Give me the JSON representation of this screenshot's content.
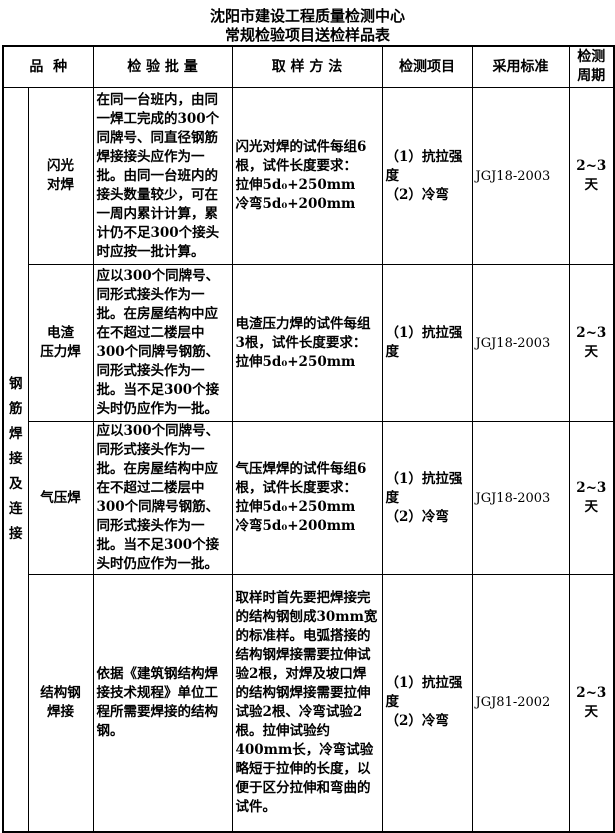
{
  "title_line1": "沈阳市建设工程质量检测中心",
  "title_line2": "常规检验项目送检样品表",
  "headers": {
    "variety": "品  种",
    "batch": "检 验 批 量",
    "sampling": "取 样 方 法",
    "items": "检测项目",
    "standard": "采用标准",
    "period": "检测\n周期"
  },
  "group": "钢\n筋\n焊\n接\n及\n连\n接",
  "rows": [
    {
      "variety": "闪光\n对焊",
      "batch": "在同一台班内，由同一焊工完成的300个同牌号、同直径钢筋焊接接头应作为一批。由同一台班内的接头数量较少，可在一周内累计计算，累计仍不足300个接头时应按一批计算。",
      "sampling": "闪光对焊的试件每组6根，试件长度要求：\n拉伸5d₀+250mm\n冷弯5d₀+200mm",
      "items": "（1）抗拉强度\n（2）冷弯",
      "standard": "JGJ18-2003",
      "period": "2~3\n天"
    },
    {
      "variety": "电渣\n压力焊",
      "batch": "应以300个同牌号、同形式接头作为一批。在房屋结构中应在不超过二楼层中300个同牌号钢筋、同形式接头作为一批。当不足300个接头时仍应作为一批。",
      "sampling": "电渣压力焊的试件每组3根，试件长度要求：\n拉伸5d₀+250mm",
      "items": "（1）抗拉强度",
      "standard": "JGJ18-2003",
      "period": "2~3\n天"
    },
    {
      "variety": "气压焊",
      "batch": "应以300个同牌号、同形式接头作为一批。在房屋结构中应在不超过二楼层中300个同牌号钢筋、同形式接头作为一批。当不足300个接头时仍应作为一批。",
      "sampling": "气压焊焊的试件每组6根，试件长度要求：\n拉伸5d₀+250mm\n冷弯5d₀+200mm",
      "items": "（1）抗拉强度\n（2）冷弯",
      "standard": "JGJ18-2003",
      "period": "2~3\n天"
    },
    {
      "variety": "结构钢\n焊接",
      "batch": "依据《建筑钢结构焊接技术规程》单位工程所需要焊接的结构钢。",
      "sampling": "取样时首先要把焊接完的结构钢刨成30mm宽的标准样。电弧搭接的结构钢焊接需要拉伸试验2根，对焊及坡口焊的结构钢焊接需要拉伸试验2根、冷弯试验2根。拉伸试验约400mm长，冷弯试验略短于拉伸的长度，以便于区分拉伸和弯曲的试件。",
      "items": "（1）抗拉强度\n（2）冷弯",
      "standard": "JGJ81-2002",
      "period": "2~3\n天"
    }
  ]
}
